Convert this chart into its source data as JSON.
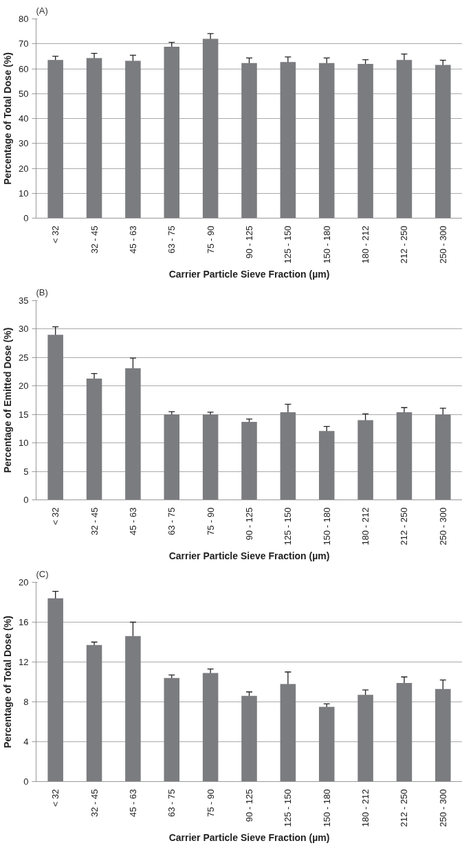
{
  "chart_data": [
    {
      "type": "bar",
      "title": "(A)",
      "xlabel": "Carrier Particle Sieve Fraction (µm)",
      "ylabel": "Percentage of Total Dose (%)",
      "categories": [
        "< 32",
        "32 - 45",
        "45 - 63",
        "63 - 75",
        "75 - 90",
        "90 - 125",
        "125 - 150",
        "150 - 180",
        "180 - 212",
        "212 - 250",
        "250 - 300"
      ],
      "color": "#7b7c80",
      "values": [
        63.5,
        64.3,
        63.2,
        68.8,
        72,
        62.3,
        62.7,
        62.3,
        61.9,
        63.5,
        61.5
      ],
      "errors": [
        1.5,
        1.9,
        2.2,
        1.8,
        2.1,
        2,
        2,
        2,
        1.7,
        2.4,
        1.9
      ],
      "ylim": [
        0,
        80
      ],
      "yticks": [
        0,
        10,
        20,
        30,
        40,
        50,
        60,
        70,
        80
      ],
      "grid": "y"
    },
    {
      "type": "bar",
      "title": "(B)",
      "xlabel": "Carrier Particle Sieve Fraction (µm)",
      "ylabel": "Percentage of Emitted Dose (%)",
      "categories": [
        "< 32",
        "32 - 45",
        "45 - 63",
        "63 - 75",
        "75 - 90",
        "90 - 125",
        "125 - 150",
        "150 - 180",
        "180 - 212",
        "212 - 250",
        "250 - 300"
      ],
      "color": "#7b7c80",
      "values": [
        29,
        21.3,
        23.1,
        15,
        15,
        13.7,
        15.4,
        12.1,
        14,
        15.4,
        15
      ],
      "errors": [
        1.4,
        0.9,
        1.8,
        0.5,
        0.4,
        0.5,
        1.4,
        0.8,
        1.1,
        0.8,
        1.1
      ],
      "ylim": [
        0,
        35
      ],
      "yticks": [
        0,
        5,
        10,
        15,
        20,
        25,
        30,
        35
      ],
      "grid": "y"
    },
    {
      "type": "bar",
      "title": "(C)",
      "xlabel": "Carrier Particle Sieve Fraction (µm)",
      "ylabel": "Percentage of Total Dose (%)",
      "categories": [
        "< 32",
        "32 - 45",
        "45 - 63",
        "63 - 75",
        "75 - 90",
        "90 - 125",
        "125 - 150",
        "150 - 180",
        "180 - 212",
        "212 - 250",
        "250 - 300"
      ],
      "color": "#7b7c80",
      "values": [
        18.4,
        13.7,
        14.6,
        10.4,
        10.9,
        8.6,
        9.8,
        7.5,
        8.7,
        9.9,
        9.3
      ],
      "errors": [
        0.7,
        0.3,
        1.4,
        0.3,
        0.4,
        0.4,
        1.2,
        0.3,
        0.5,
        0.6,
        0.9
      ],
      "ylim": [
        0,
        20
      ],
      "yticks": [
        0,
        4,
        8,
        12,
        16,
        20
      ],
      "grid": "y"
    }
  ]
}
